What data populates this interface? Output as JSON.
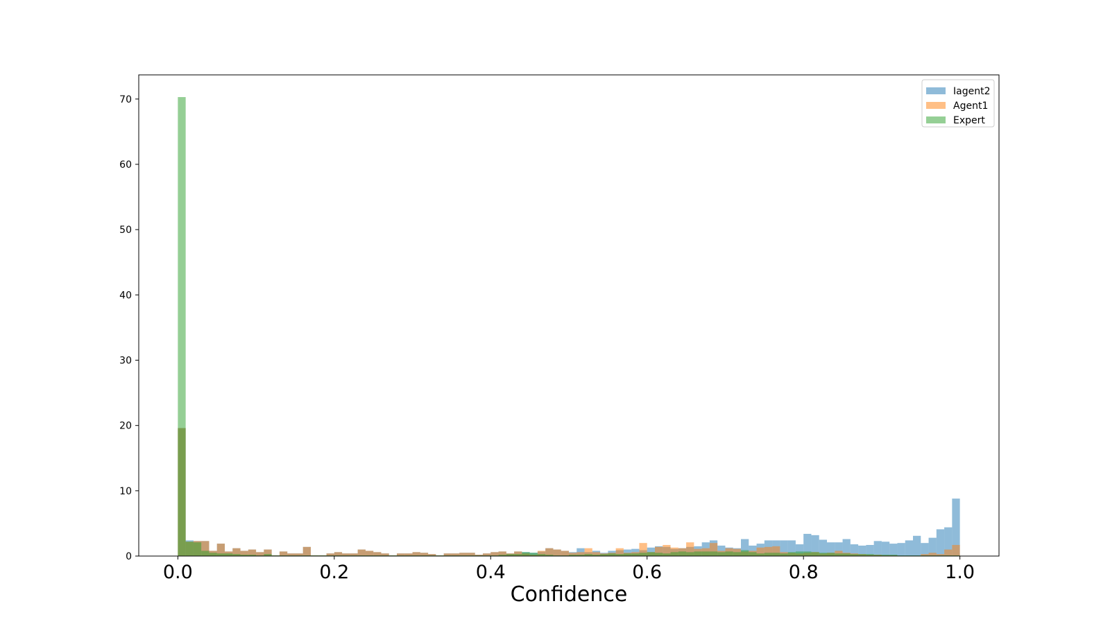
{
  "chart_data": {
    "type": "bar",
    "subtype": "overlaid histogram",
    "title": "",
    "xlabel": "Confidence",
    "ylabel": "",
    "xlim": [
      -0.05,
      1.05
    ],
    "ylim": [
      0,
      73.7
    ],
    "xticks": [
      "0.0",
      "0.2",
      "0.4",
      "0.6",
      "0.8",
      "1.0"
    ],
    "yticks": [
      "0",
      "10",
      "20",
      "30",
      "40",
      "50",
      "60",
      "70"
    ],
    "bins": 100,
    "bin_range": [
      0,
      1
    ],
    "grid": false,
    "legend_position": "top-right",
    "bar_opacity": 0.5,
    "series": [
      {
        "name": "Iagent2",
        "color": "#1f77b4",
        "values": [
          19.6,
          2.4,
          2.3,
          2.3,
          0.8,
          1.9,
          0.7,
          1.2,
          0.8,
          1.0,
          0.6,
          1.0,
          0.1,
          0.7,
          0.4,
          0.4,
          1.4,
          0.1,
          0.1,
          0.4,
          0.6,
          0.4,
          0.4,
          1.0,
          0.8,
          0.6,
          0.4,
          0.1,
          0.4,
          0.4,
          0.6,
          0.5,
          0.3,
          0.1,
          0.4,
          0.4,
          0.5,
          0.5,
          0.2,
          0.4,
          0.6,
          0.7,
          0.4,
          0.7,
          0.6,
          0.5,
          0.7,
          1.2,
          1.0,
          0.8,
          0.6,
          1.2,
          0.6,
          0.8,
          0.5,
          0.8,
          0.9,
          1.0,
          1.1,
          0.9,
          1.3,
          1.5,
          1.4,
          1.1,
          1.2,
          1.4,
          1.5,
          2.1,
          2.4,
          1.6,
          1.3,
          1.2,
          2.6,
          1.6,
          1.9,
          2.4,
          2.4,
          2.4,
          2.4,
          1.8,
          3.4,
          3.2,
          2.5,
          2.1,
          2.1,
          2.6,
          1.8,
          1.6,
          1.7,
          2.3,
          2.2,
          1.9,
          2.0,
          2.4,
          3.1,
          2.0,
          2.8,
          4.1,
          4.4,
          8.8
        ]
      },
      {
        "name": "Agent1",
        "color": "#ff7f0e",
        "values": [
          19.6,
          2.2,
          2.3,
          2.3,
          0.8,
          1.9,
          0.7,
          1.2,
          0.8,
          1.0,
          0.6,
          1.0,
          0.1,
          0.7,
          0.4,
          0.4,
          1.4,
          0.1,
          0.1,
          0.4,
          0.6,
          0.4,
          0.4,
          1.0,
          0.8,
          0.6,
          0.4,
          0.1,
          0.4,
          0.4,
          0.6,
          0.5,
          0.3,
          0.1,
          0.4,
          0.4,
          0.5,
          0.5,
          0.2,
          0.4,
          0.6,
          0.7,
          0.4,
          0.7,
          0.4,
          0.2,
          0.8,
          1.2,
          1.0,
          0.8,
          0.5,
          0.6,
          1.2,
          0.6,
          0.4,
          0.5,
          1.2,
          0.5,
          0.6,
          2.0,
          0.6,
          1.4,
          1.7,
          1.3,
          1.2,
          2.1,
          1.1,
          1.2,
          2.0,
          0.8,
          1.2,
          1.1,
          0.7,
          0.8,
          1.3,
          1.4,
          1.5,
          0.6,
          0.5,
          0.4,
          0.5,
          0.6,
          0.4,
          0.5,
          0.8,
          0.5,
          0.4,
          0.3,
          0.2,
          0.2,
          0.1,
          0.1,
          0.0,
          0.0,
          0.0,
          0.3,
          0.5,
          0.3,
          1.0,
          1.7
        ]
      },
      {
        "name": "Expert",
        "color": "#2ca02c",
        "values": [
          70.3,
          2.2,
          2.1,
          0.8,
          0.5,
          0.4,
          0.4,
          0.3,
          0.2,
          0.2,
          0.1,
          0.3,
          0.1,
          0.1,
          0.1,
          0.1,
          0.1,
          0.1,
          0.1,
          0.1,
          0.1,
          0.1,
          0.1,
          0.1,
          0.1,
          0.1,
          0.1,
          0.1,
          0.1,
          0.1,
          0.1,
          0.1,
          0.1,
          0.1,
          0.1,
          0.1,
          0.1,
          0.1,
          0.1,
          0.1,
          0.1,
          0.2,
          0.3,
          0.3,
          0.6,
          0.5,
          0.3,
          0.2,
          0.1,
          0.1,
          0.2,
          0.2,
          0.3,
          0.2,
          0.3,
          0.4,
          0.3,
          0.4,
          0.4,
          0.5,
          0.6,
          0.5,
          0.4,
          0.6,
          0.7,
          0.6,
          0.7,
          0.7,
          0.7,
          0.6,
          0.7,
          0.6,
          0.9,
          0.6,
          0.4,
          0.5,
          0.5,
          0.4,
          0.6,
          0.7,
          0.7,
          0.6,
          0.5,
          0.5,
          0.4,
          0.4,
          0.3,
          0.3,
          0.3,
          0.2,
          0.2,
          0.2,
          0.1,
          0.1,
          0.1,
          0.1,
          0.1,
          0.1,
          0.1,
          0.1
        ]
      }
    ]
  }
}
